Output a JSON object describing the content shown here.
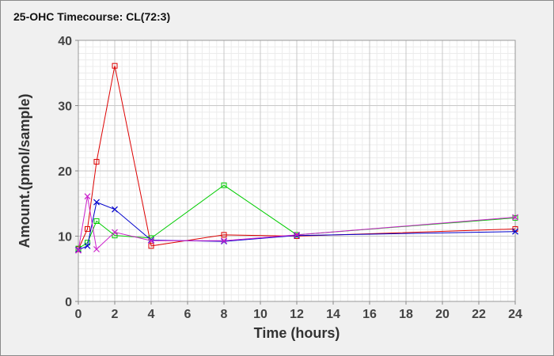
{
  "chart_data": {
    "type": "line",
    "title": "25-OHC Timecourse: CL(72:3)",
    "xlabel": "Time (hours)",
    "ylabel": "Amount.(pmol/sample)",
    "xlim": [
      0,
      24
    ],
    "ylim": [
      0,
      40
    ],
    "xticks": [
      0,
      2,
      4,
      6,
      8,
      10,
      12,
      14,
      16,
      18,
      20,
      22,
      24
    ],
    "yticks": [
      0,
      10,
      20,
      30,
      40
    ],
    "grid": true,
    "series": [
      {
        "color": "#dd0000",
        "marker": "square",
        "x": [
          0,
          0.5,
          1,
          2,
          4,
          8,
          12,
          24
        ],
        "y": [
          8.0,
          11.1,
          21.4,
          36.1,
          8.5,
          10.2,
          10.0,
          11.1
        ]
      },
      {
        "color": "#00cc00",
        "marker": "square",
        "x": [
          0,
          0.5,
          1,
          2,
          4,
          8,
          12,
          24
        ],
        "y": [
          8.1,
          9.0,
          12.3,
          10.1,
          9.7,
          17.8,
          10.2,
          12.8
        ]
      },
      {
        "color": "#0000cc",
        "marker": "x",
        "x": [
          0,
          0.5,
          1,
          2,
          4,
          8,
          12,
          24
        ],
        "y": [
          7.9,
          8.5,
          15.2,
          14.1,
          9.4,
          9.2,
          10.1,
          10.7
        ]
      },
      {
        "color": "#cc22cc",
        "marker": "x",
        "x": [
          0,
          0.5,
          1,
          2,
          4,
          8,
          12,
          24
        ],
        "y": [
          7.8,
          16.1,
          8.0,
          10.6,
          9.3,
          9.3,
          10.2,
          12.9
        ]
      }
    ]
  }
}
